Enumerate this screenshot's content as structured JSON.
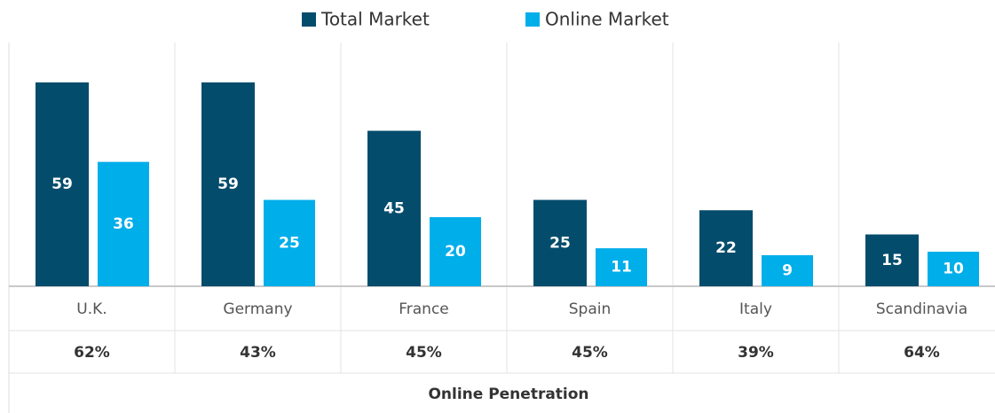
{
  "chart_data": {
    "type": "bar",
    "categories": [
      "U.K.",
      "Germany",
      "France",
      "Spain",
      "Italy",
      "Scandinavia"
    ],
    "series": [
      {
        "name": "Total Market",
        "color": "#044c6c",
        "values": [
          59,
          59,
          45,
          25,
          22,
          15
        ]
      },
      {
        "name": "Online Market",
        "color": "#00aeea",
        "values": [
          36,
          25,
          20,
          11,
          9,
          10
        ]
      }
    ],
    "legend": "top",
    "penetration": {
      "label": "Online Penetration",
      "values": [
        62,
        43,
        45,
        45,
        39,
        64
      ],
      "value_labels": [
        "62%",
        "43%",
        "45%",
        "45%",
        "39%",
        "64%"
      ]
    }
  }
}
